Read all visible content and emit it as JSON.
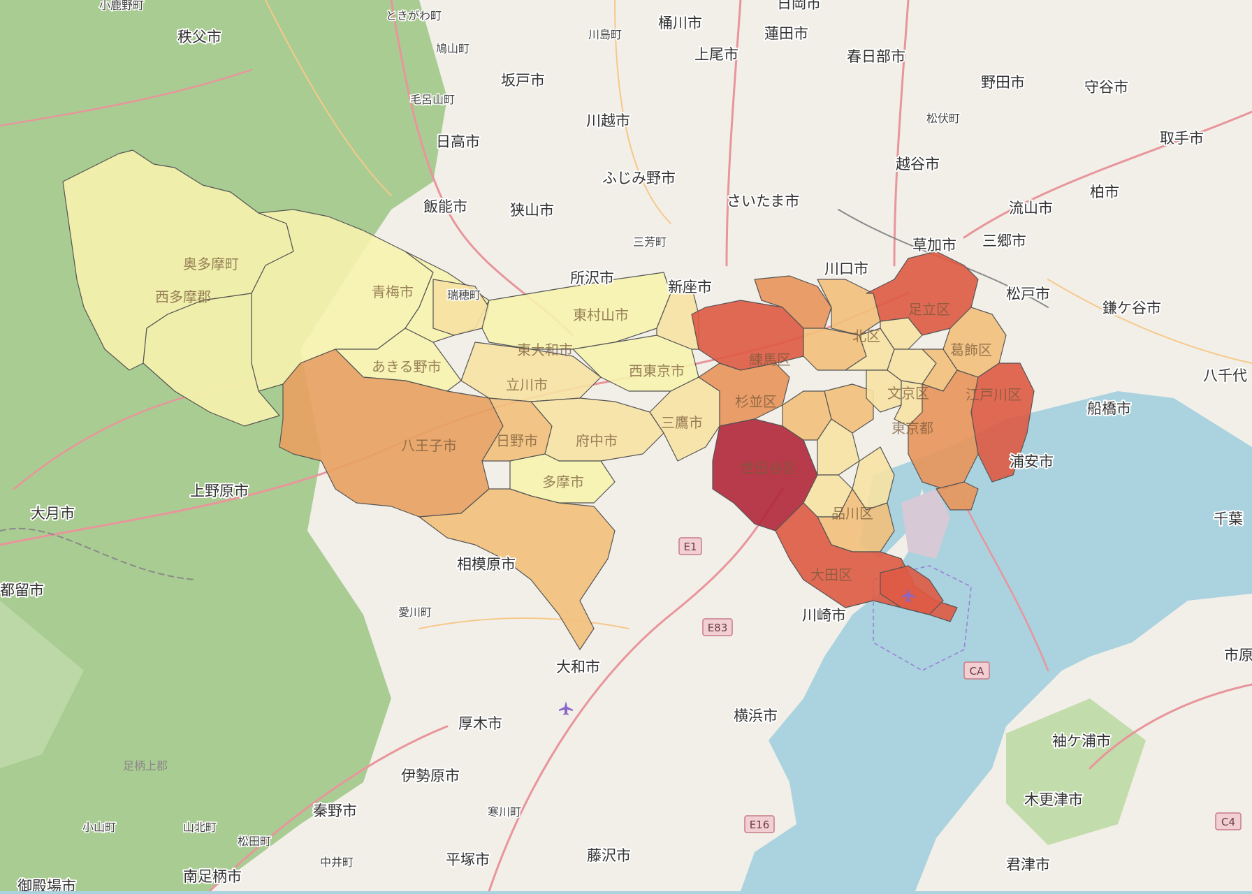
{
  "map": {
    "colors": {
      "water": "#aad3df",
      "land": "#f2efe9",
      "forest": "#a9cc92",
      "road_major": "#e8959b",
      "road_minor": "#f6c98a",
      "rail": "#8a8a8a",
      "choropleth_scale": [
        "#f6f3ae",
        "#f7e2a3",
        "#f2c07b",
        "#e8935a",
        "#de5a44",
        "#b02738"
      ]
    },
    "city_labels": [
      "小鹿野町",
      "ときがわ町",
      "桶川市",
      "蓮田市",
      "日岡市",
      "秩父市",
      "川島町",
      "上尾市",
      "春日部市",
      "鳩山町",
      "坂戸市",
      "野田市",
      "守谷市",
      "毛呂山町",
      "松伏町",
      "川越市",
      "日高市",
      "取手市",
      "越谷市",
      "ふじみ野市",
      "さいたま市",
      "流山市",
      "柏市",
      "飯能市",
      "狭山市",
      "草加市",
      "三郷市",
      "三芳町",
      "所沢市",
      "新座市",
      "川口市",
      "松戸市",
      "鎌ケ谷市",
      "船橋市",
      "八千代",
      "浦安市",
      "千葉",
      "大月市",
      "上野原市",
      "都留市",
      "相模原市",
      "愛川町",
      "川崎市",
      "大和市",
      "厚木市",
      "横浜市",
      "袖ケ浦市",
      "市原",
      "伊勢原市",
      "秦野市",
      "寒川町",
      "木更津市",
      "小山町",
      "山北町",
      "松田町",
      "中井町",
      "平塚市",
      "藤沢市",
      "南足柄市",
      "君津市",
      "御殿場市"
    ],
    "district_labels": [
      "奥多摩町",
      "西多摩郡",
      "青梅市",
      "瑞穂町",
      "東村山市",
      "東大和市",
      "あきる野市",
      "立川市",
      "西東京市",
      "練馬区",
      "北区",
      "足立区",
      "葛飾区",
      "江戸川区",
      "杉並区",
      "文京区",
      "東京都",
      "八王子市",
      "日野市",
      "府中市",
      "三鷹市",
      "世田谷区",
      "多摩市",
      "品川区",
      "大田区"
    ],
    "other_labels": [
      "足柄上郡"
    ],
    "road_shields": [
      "E1",
      "E83",
      "CA",
      "E16",
      "C4"
    ],
    "icons": [
      "airport-icon",
      "airport-icon"
    ]
  }
}
